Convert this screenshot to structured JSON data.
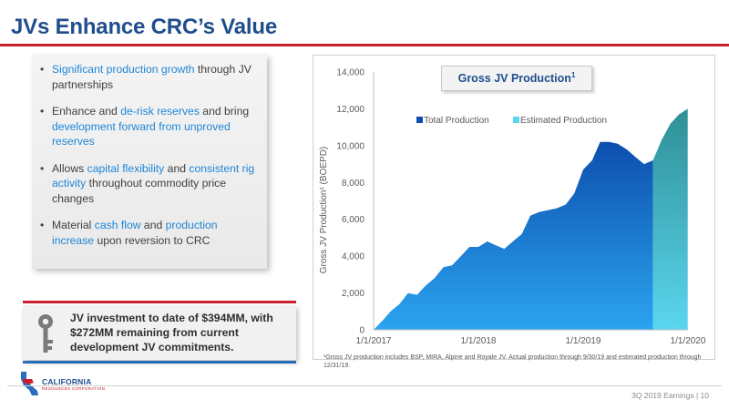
{
  "slide": {
    "title": "JVs Enhance CRC’s Value",
    "footer": "3Q 2019 Earnings | 10"
  },
  "bullets": [
    {
      "parts": [
        {
          "t": "Significant production growth",
          "hl": true
        },
        {
          "t": " through JV partnerships",
          "hl": false
        }
      ]
    },
    {
      "parts": [
        {
          "t": "Enhance and ",
          "hl": false
        },
        {
          "t": "de-risk reserves",
          "hl": true
        },
        {
          "t": " and bring ",
          "hl": false
        },
        {
          "t": "development forward from unproved reserves",
          "hl": true
        }
      ]
    },
    {
      "parts": [
        {
          "t": "Allows ",
          "hl": false
        },
        {
          "t": "capital flexibility",
          "hl": true
        },
        {
          "t": " and ",
          "hl": false
        },
        {
          "t": "consistent rig activity",
          "hl": true
        },
        {
          "t": " throughout commodity price changes",
          "hl": false
        }
      ]
    },
    {
      "parts": [
        {
          "t": "Material ",
          "hl": false
        },
        {
          "t": "cash flow",
          "hl": true
        },
        {
          "t": " and ",
          "hl": false
        },
        {
          "t": "production increase",
          "hl": true
        },
        {
          "t": " upon reversion to CRC",
          "hl": false
        }
      ]
    }
  ],
  "callout": {
    "text": "JV investment to date of $394MM, with $272MM remaining from current development JV commitments."
  },
  "logo": {
    "word": "CALIFORNIA",
    "sub": "RESOURCES CORPORATION"
  },
  "chart_title": {
    "text": "Gross JV Production",
    "sup": "1"
  },
  "footnote": "¹Gross JV production includes BSP, MIRA, Alpine and Royale JV. Actual production through 9/30/19 and estimated production through 12/31/19.",
  "colors": {
    "brand_blue": "#1f4e8c",
    "brand_red": "#c8202f",
    "highlight_blue": "#1f86d6",
    "actual_top": "#0d4fae",
    "actual_bottom": "#2ba4f0",
    "estimated_top": "#2f8f96",
    "estimated_bottom": "#5bd6ef"
  },
  "chart_data": {
    "type": "area",
    "title": "Gross JV Production¹",
    "ylabel": "Gross JV Production¹ (BOEPD)",
    "xlabel": "",
    "ylim": [
      0,
      14000
    ],
    "yticks": [
      0,
      2000,
      4000,
      6000,
      8000,
      10000,
      12000,
      14000
    ],
    "ytick_labels": [
      "0",
      "2,000",
      "4,000",
      "6,000",
      "8,000",
      "10,000",
      "12,000",
      "14,000"
    ],
    "xlim": [
      "2017-01-01",
      "2020-01-01"
    ],
    "xtick_labels": [
      "1/1/2017",
      "1/1/2018",
      "1/1/2019",
      "1/1/2020"
    ],
    "xticks": [
      "2017-01-01",
      "2018-01-01",
      "2019-01-01",
      "2020-01-01"
    ],
    "grid": false,
    "legend": "top",
    "series": [
      {
        "name": "Total Production",
        "points": [
          [
            "2017-01-01",
            0
          ],
          [
            "2017-02-01",
            500
          ],
          [
            "2017-03-01",
            1000
          ],
          [
            "2017-04-01",
            1400
          ],
          [
            "2017-05-01",
            2000
          ],
          [
            "2017-06-01",
            1900
          ],
          [
            "2017-07-01",
            2400
          ],
          [
            "2017-08-01",
            2800
          ],
          [
            "2017-09-01",
            3400
          ],
          [
            "2017-10-01",
            3500
          ],
          [
            "2017-11-01",
            4000
          ],
          [
            "2017-12-01",
            4500
          ],
          [
            "2018-01-01",
            4500
          ],
          [
            "2018-02-01",
            4800
          ],
          [
            "2018-03-01",
            4600
          ],
          [
            "2018-04-01",
            4400
          ],
          [
            "2018-05-01",
            4800
          ],
          [
            "2018-06-01",
            5200
          ],
          [
            "2018-07-01",
            6200
          ],
          [
            "2018-08-01",
            6400
          ],
          [
            "2018-09-01",
            6500
          ],
          [
            "2018-10-01",
            6600
          ],
          [
            "2018-11-01",
            6800
          ],
          [
            "2018-12-01",
            7400
          ],
          [
            "2019-01-01",
            8700
          ],
          [
            "2019-02-01",
            9200
          ],
          [
            "2019-03-01",
            10200
          ],
          [
            "2019-04-01",
            10200
          ],
          [
            "2019-05-01",
            10100
          ],
          [
            "2019-06-01",
            9800
          ],
          [
            "2019-07-01",
            9400
          ],
          [
            "2019-08-01",
            9000
          ],
          [
            "2019-09-01",
            9200
          ]
        ]
      },
      {
        "name": "Estimated Production",
        "points": [
          [
            "2019-09-01",
            9200
          ],
          [
            "2019-10-01",
            10300
          ],
          [
            "2019-11-01",
            11200
          ],
          [
            "2019-12-01",
            11700
          ],
          [
            "2019-12-31",
            12000
          ]
        ]
      }
    ]
  }
}
